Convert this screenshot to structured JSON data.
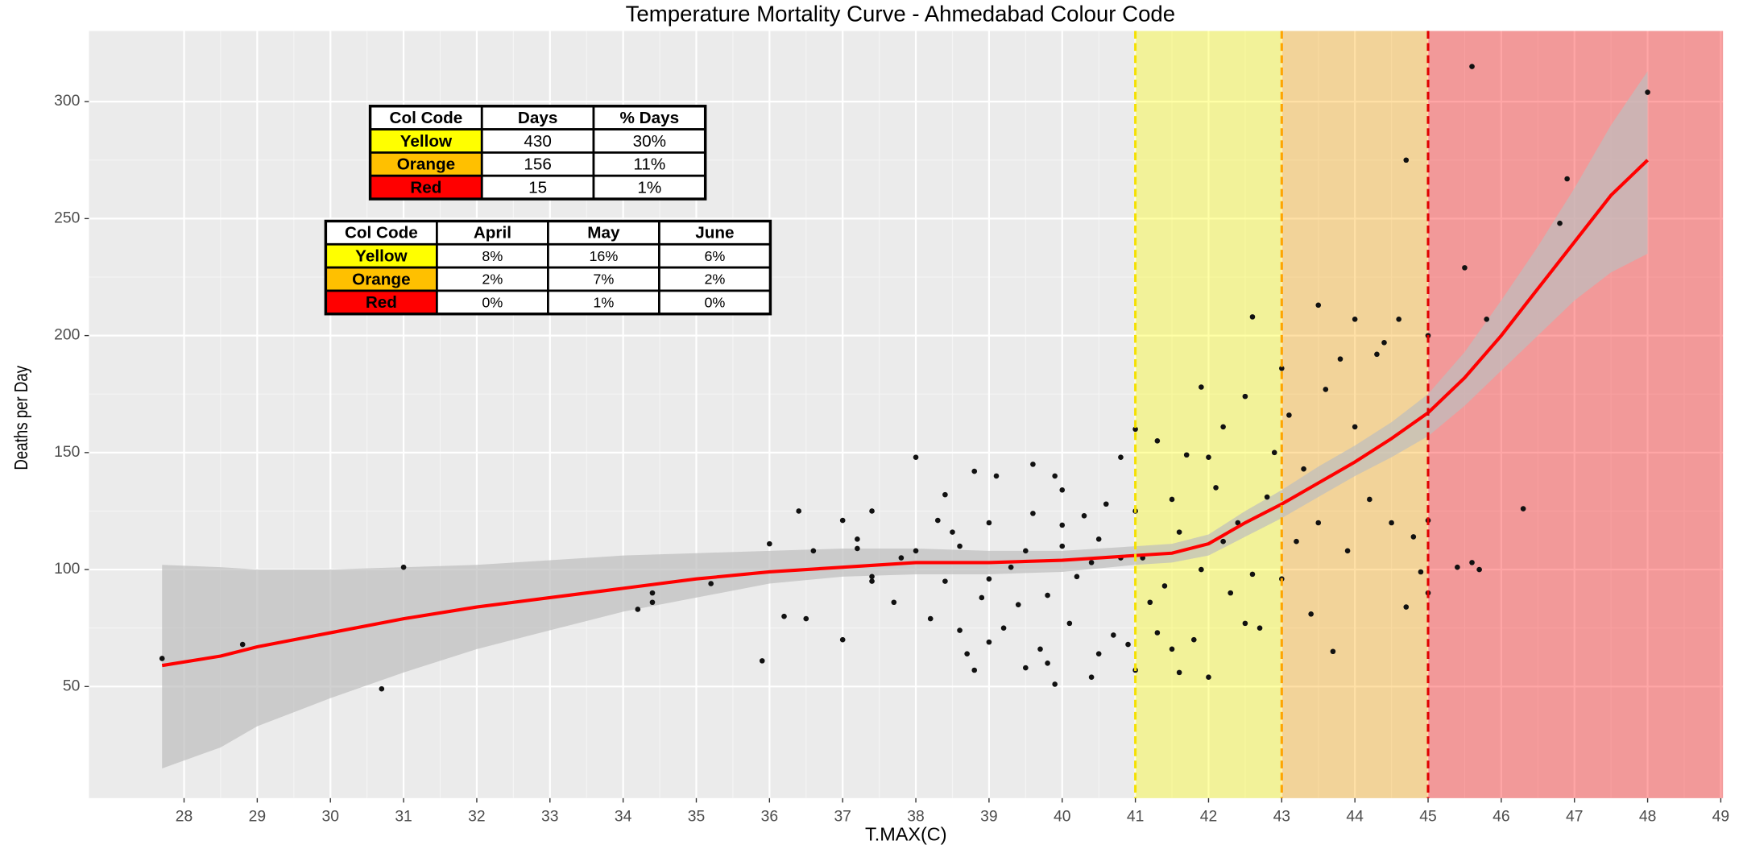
{
  "chart_data": {
    "type": "scatter",
    "title": "Temperature Mortality Curve - Ahmedabad Colour Code",
    "x_label": "T.MAX(C)",
    "y_label": "Deaths per Day",
    "xlim": [
      26.7,
      49.03
    ],
    "ylim": [
      2.3,
      330.2
    ],
    "xticks": [
      28,
      29,
      30,
      31,
      32,
      33,
      34,
      35,
      36,
      37,
      38,
      39,
      40,
      41,
      42,
      43,
      44,
      45,
      46,
      47,
      48,
      49
    ],
    "yticks": [
      50,
      100,
      150,
      200,
      250,
      300
    ],
    "grid": true,
    "point_color": "#111111",
    "x": [
      27.7,
      28.8,
      30.7,
      31,
      34.2,
      34.4,
      34.4,
      35.2,
      35.9,
      36,
      36.2,
      36.4,
      36.5,
      36.6,
      37,
      37,
      37.2,
      37.2,
      37.4,
      37.4,
      37.4,
      37.7,
      37.8,
      38,
      38,
      38.2,
      38.3,
      38.4,
      38.4,
      38.5,
      38.6,
      38.6,
      38.7,
      38.8,
      38.8,
      38.9,
      39,
      39,
      39,
      39.1,
      39.2,
      39.3,
      39.4,
      39.5,
      39.5,
      39.6,
      39.6,
      39.7,
      39.8,
      39.8,
      39.9,
      39.9,
      40,
      40,
      40,
      40.1,
      40.2,
      40.3,
      40.4,
      40.4,
      40.5,
      40.5,
      40.6,
      40.7,
      40.8,
      40.8,
      40.9,
      41,
      41,
      41,
      41.1,
      41.2,
      41.3,
      41.3,
      41.4,
      41.5,
      41.5,
      41.6,
      41.6,
      41.7,
      41.8,
      41.9,
      41.9,
      42,
      42,
      42.1,
      42.2,
      42.2,
      42.3,
      42.4,
      42.5,
      42.5,
      42.6,
      42.6,
      42.7,
      42.8,
      42.9,
      43,
      43,
      43.1,
      43.2,
      43.3,
      43.4,
      43.5,
      43.5,
      43.6,
      43.7,
      43.8,
      43.9,
      44,
      44,
      44.2,
      44.3,
      44.4,
      44.5,
      44.6,
      44.7,
      44.7,
      44.8,
      44.9,
      45,
      45,
      45,
      45.4,
      45.5,
      45.6,
      45.6,
      45.7,
      45.8,
      46.3,
      46.8,
      46.9,
      48
    ],
    "y": [
      62,
      68,
      49,
      101,
      83,
      86,
      90,
      94,
      61,
      111,
      80,
      125,
      79,
      108,
      121,
      70,
      113,
      109,
      125,
      95,
      97,
      86,
      105,
      148,
      108,
      79,
      121,
      132,
      95,
      116,
      74,
      110,
      64,
      57,
      142,
      88,
      69,
      120,
      96,
      140,
      75,
      101,
      85,
      108,
      58,
      145,
      124,
      66,
      89,
      60,
      51,
      140,
      134,
      110,
      119,
      77,
      97,
      123,
      103,
      54,
      113,
      64,
      128,
      72,
      105,
      148,
      68,
      160,
      125,
      57,
      105,
      86,
      155,
      73,
      93,
      66,
      130,
      56,
      116,
      149,
      70,
      100,
      178,
      148,
      54,
      135,
      112,
      161,
      90,
      120,
      174,
      77,
      208,
      98,
      75,
      131,
      150,
      186,
      96,
      166,
      112,
      143,
      81,
      213,
      120,
      177,
      65,
      190,
      108,
      207,
      161,
      130,
      192,
      197,
      120,
      207,
      275,
      84,
      114,
      99,
      200,
      90,
      121,
      101,
      229,
      315,
      103,
      100,
      207,
      126,
      248,
      267,
      304
    ],
    "fit": {
      "color": "#ff0000",
      "band_color": "#bdbdbd",
      "x": [
        27.7,
        28.5,
        29,
        30,
        31,
        32,
        33,
        34,
        35,
        36,
        37,
        38,
        39,
        40,
        41,
        41.5,
        42,
        42.5,
        43,
        43.5,
        44,
        44.5,
        45,
        45.5,
        46,
        46.5,
        47,
        47.5,
        48
      ],
      "y": [
        59,
        63,
        67,
        73,
        79,
        84,
        88,
        92,
        96,
        99,
        101,
        103,
        103,
        104,
        106,
        107,
        111,
        120,
        128,
        137,
        146,
        156,
        167,
        182,
        200,
        220,
        240,
        260,
        275
      ],
      "lower": [
        15,
        24,
        33,
        45,
        56,
        66,
        74,
        82,
        88,
        94,
        97,
        98,
        98,
        99,
        102,
        103,
        106,
        114,
        122,
        131,
        140,
        148,
        157,
        170,
        185,
        200,
        215,
        227,
        235
      ],
      "upper": [
        102,
        101,
        100,
        100,
        101,
        102,
        104,
        106,
        107,
        108,
        109,
        109,
        108,
        108,
        110,
        111,
        115,
        125,
        134,
        144,
        153,
        163,
        175,
        193,
        215,
        238,
        263,
        290,
        313
      ]
    },
    "regions": [
      {
        "from": 41,
        "to": 43,
        "color": "#ffff00"
      },
      {
        "from": 43,
        "to": 45,
        "color": "#ffa500"
      },
      {
        "from": 45,
        "to": 49.03,
        "color": "#ff0000"
      }
    ],
    "vlines": [
      {
        "x": 41,
        "color": "#f5e000"
      },
      {
        "x": 43,
        "color": "#ffa500"
      },
      {
        "x": 45,
        "color": "#e00000"
      }
    ]
  },
  "tables": [
    {
      "header": [
        "Col Code",
        "Days",
        "% Days"
      ],
      "rows": [
        [
          "Yellow",
          "430",
          "30%"
        ],
        [
          "Orange",
          "156",
          "11%"
        ],
        [
          "Red",
          "15",
          "1%"
        ]
      ],
      "row_colors": [
        "#ffff00",
        "#ffc000",
        "#ff0000"
      ]
    },
    {
      "header": [
        "Col Code",
        "April",
        "May",
        "June"
      ],
      "rows": [
        [
          "Yellow",
          "8%",
          "16%",
          "6%"
        ],
        [
          "Orange",
          "2%",
          "7%",
          "2%"
        ],
        [
          "Red",
          "0%",
          "1%",
          "0%"
        ]
      ],
      "row_colors": [
        "#ffff00",
        "#ffc000",
        "#ff0000"
      ]
    }
  ]
}
